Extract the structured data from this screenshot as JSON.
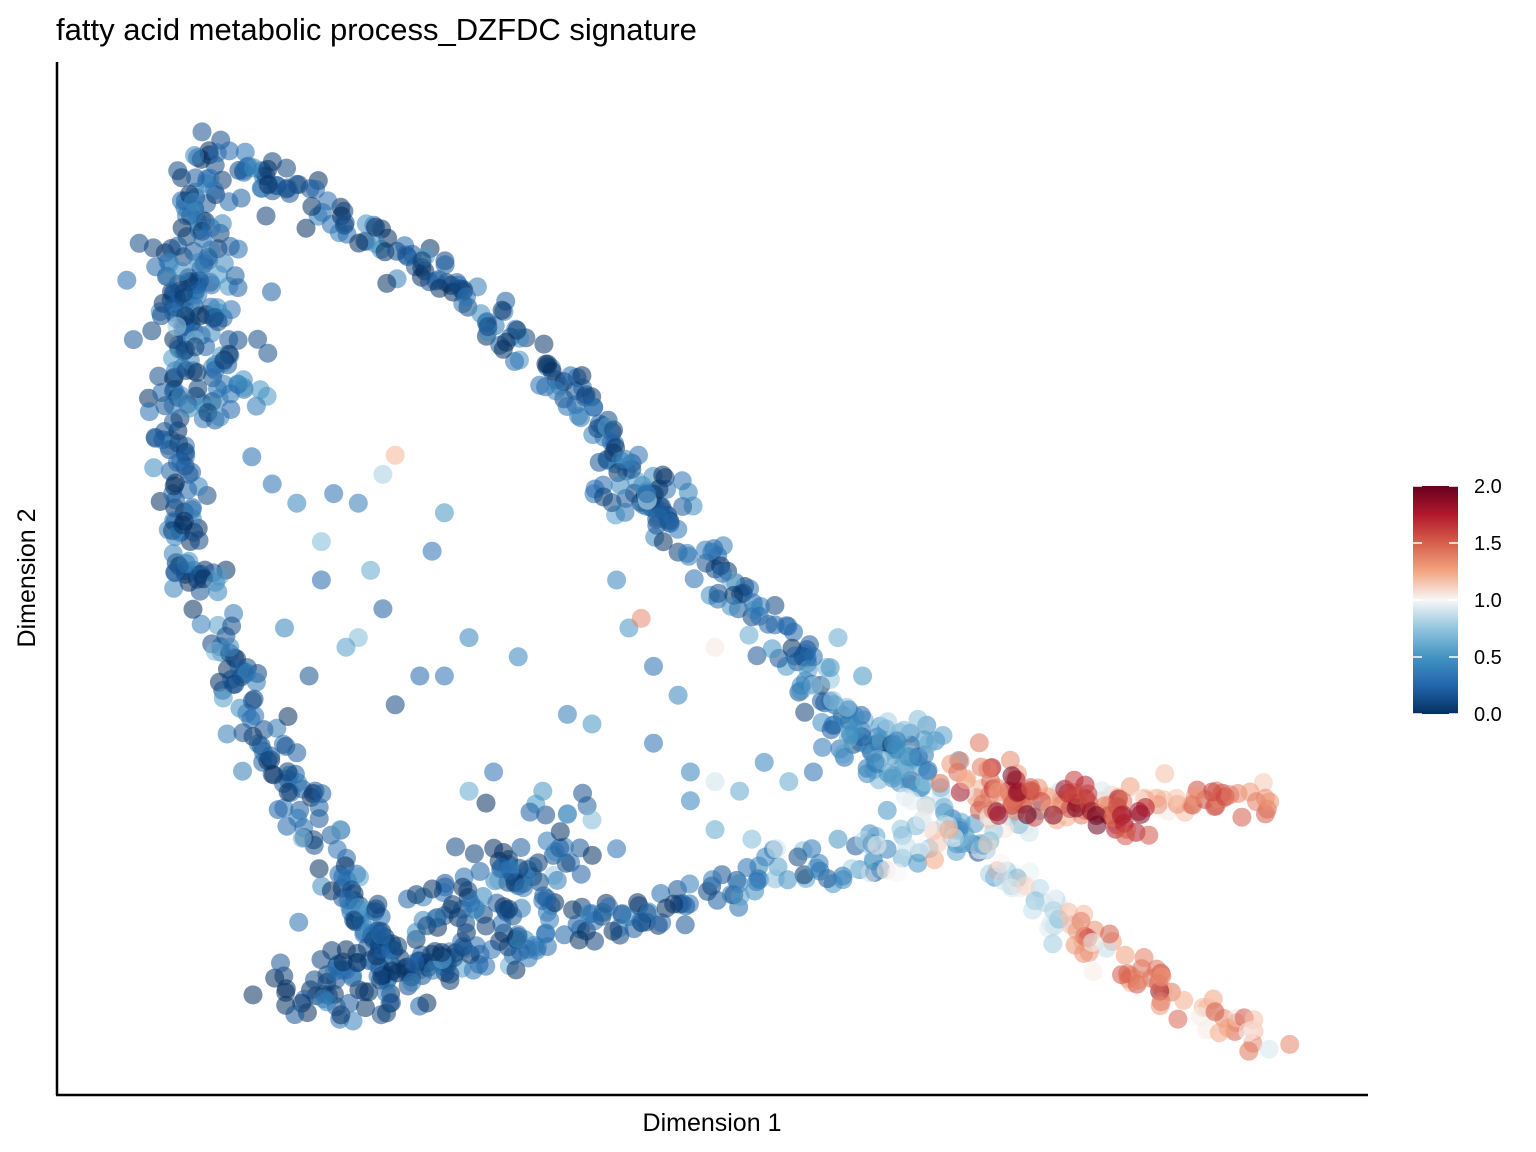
{
  "chart_data": {
    "type": "scatter",
    "title": "fatty acid metabolic process_DZFDC signature",
    "xlabel": "Dimension 1",
    "ylabel": "Dimension 2",
    "xlim": [
      0,
      100
    ],
    "ylim": [
      0,
      100
    ],
    "x_ticks": "none",
    "y_ticks": "none",
    "grid": false,
    "legend": {
      "position": "right",
      "type": "colorbar",
      "range": [
        0.0,
        2.0
      ],
      "ticks": [
        "0.0",
        "0.5",
        "1.0",
        "1.5",
        "2.0"
      ],
      "colors": [
        "#053061",
        "#2166ac",
        "#4393c3",
        "#92c5de",
        "#f7f7f7",
        "#f4a582",
        "#d6604d",
        "#b2182b",
        "#67001f"
      ]
    },
    "colors": {
      "axis": "#000000",
      "text": "#000000"
    },
    "point_opacity": 0.55,
    "curves": [
      {
        "name_key": "left-arm",
        "pts": [
          [
            9.5,
            96
          ],
          [
            8.7,
            93
          ],
          [
            7,
            84
          ],
          [
            6.2,
            74
          ],
          [
            6,
            64
          ],
          [
            7.5,
            52
          ],
          [
            9.7,
            44
          ],
          [
            12,
            37
          ],
          [
            14,
            31
          ],
          [
            17,
            25
          ],
          [
            20,
            18
          ],
          [
            22,
            13
          ],
          [
            25,
            9
          ]
        ],
        "spread": 1.0,
        "density": 1.0,
        "val": [
          0.15,
          0.18
        ]
      },
      {
        "name_key": "top-arm",
        "pts": [
          [
            10,
            94
          ],
          [
            14,
            92
          ],
          [
            19,
            88
          ],
          [
            23,
            85
          ],
          [
            28,
            81
          ],
          [
            33,
            76
          ],
          [
            38,
            70
          ],
          [
            42,
            64
          ],
          [
            45,
            58
          ],
          [
            49,
            53
          ],
          [
            53,
            47
          ],
          [
            57,
            41
          ],
          [
            61,
            35
          ],
          [
            64,
            31
          ],
          [
            68,
            26
          ],
          [
            72,
            21
          ],
          [
            76,
            17
          ],
          [
            80,
            13
          ],
          [
            84,
            9
          ],
          [
            88,
            6
          ],
          [
            92,
            4
          ],
          [
            95,
            2
          ]
        ],
        "spread": 0.9,
        "density": 1.0,
        "valseg": [
          [
            0,
            0.14
          ],
          [
            8,
            0.2
          ],
          [
            11,
            0.3
          ],
          [
            13,
            0.6
          ],
          [
            15,
            0.9
          ],
          [
            17,
            1.35
          ],
          [
            19,
            1.2
          ],
          [
            21,
            0.7
          ]
        ]
      },
      {
        "name_key": "bottom-arm",
        "pts": [
          [
            16,
            6
          ],
          [
            22,
            8
          ],
          [
            28,
            10
          ],
          [
            34,
            12
          ],
          [
            40,
            14
          ],
          [
            46,
            16
          ],
          [
            52,
            18
          ],
          [
            58,
            20
          ],
          [
            64,
            22
          ],
          [
            70,
            24
          ],
          [
            76,
            26
          ],
          [
            82,
            27
          ],
          [
            88,
            27
          ],
          [
            94,
            27
          ],
          [
            95,
            26
          ]
        ],
        "spread": 1.3,
        "density": 1.0,
        "valseg": [
          [
            0,
            0.1
          ],
          [
            4,
            0.15
          ],
          [
            6,
            0.4
          ],
          [
            8,
            0.9
          ],
          [
            10,
            1.2
          ],
          [
            12,
            1.35
          ],
          [
            14,
            0.9
          ]
        ]
      },
      {
        "name_key": "left-cluster",
        "pts": [
          [
            8,
            88
          ],
          [
            8.5,
            82
          ],
          [
            9,
            76
          ],
          [
            10,
            70
          ],
          [
            11,
            66
          ]
        ],
        "spread": 2.2,
        "density": 1.4,
        "val": [
          0.2,
          0.25
        ]
      },
      {
        "name_key": "mid-cluster",
        "pts": [
          [
            41,
            60
          ],
          [
            43,
            60
          ],
          [
            46,
            58
          ]
        ],
        "spread": 2.0,
        "density": 1.5,
        "val": [
          0.3,
          0.3
        ]
      },
      {
        "name_key": "bottom-cluster",
        "pts": [
          [
            18,
            8
          ],
          [
            22,
            10
          ],
          [
            26,
            12
          ],
          [
            30,
            14
          ],
          [
            32,
            18
          ],
          [
            35,
            20
          ],
          [
            37,
            24
          ]
        ],
        "spread": 2.6,
        "density": 2.0,
        "val": [
          0.12,
          0.2
        ]
      },
      {
        "name_key": "right-cluster",
        "pts": [
          [
            60,
            35
          ],
          [
            63,
            34
          ],
          [
            66,
            33
          ],
          [
            69,
            31
          ],
          [
            72,
            28
          ],
          [
            75,
            27
          ]
        ],
        "spread": 1.7,
        "density": 1.5,
        "valseg": [
          [
            0,
            0.35
          ],
          [
            2,
            0.5
          ],
          [
            3,
            1.4
          ],
          [
            5,
            1.6
          ]
        ]
      },
      {
        "name_key": "red-core",
        "pts": [
          [
            73,
            28
          ],
          [
            76,
            27
          ],
          [
            79,
            27
          ],
          [
            82,
            26
          ],
          [
            85,
            26
          ]
        ],
        "spread": 1.3,
        "density": 1.6,
        "val": [
          1.55,
          1.7
        ]
      }
    ],
    "scatter_extra": [
      [
        14,
        60,
        0.3
      ],
      [
        16,
        58,
        0.4
      ],
      [
        19,
        59,
        0.3
      ],
      [
        21,
        58,
        0.35
      ],
      [
        23,
        61,
        0.8
      ],
      [
        28,
        57,
        0.5
      ],
      [
        27,
        53,
        0.3
      ],
      [
        34,
        42,
        0.4
      ],
      [
        26,
        40,
        0.25
      ],
      [
        30,
        44,
        0.4
      ],
      [
        21,
        44,
        0.7
      ],
      [
        23,
        47,
        0.2
      ],
      [
        20,
        43,
        0.55
      ],
      [
        17,
        40,
        0.15
      ],
      [
        16,
        32,
        0.2
      ],
      [
        24,
        37,
        0.1
      ],
      [
        28,
        40,
        0.3
      ],
      [
        38,
        36,
        0.35
      ],
      [
        40,
        35,
        0.5
      ],
      [
        45,
        33,
        0.3
      ],
      [
        48,
        30,
        0.4
      ],
      [
        50,
        29,
        0.9
      ],
      [
        43,
        45,
        0.5
      ],
      [
        45,
        41,
        0.3
      ],
      [
        42,
        50,
        0.4
      ],
      [
        50,
        43,
        1.05
      ],
      [
        52,
        28,
        0.6
      ],
      [
        54,
        31,
        0.4
      ],
      [
        56,
        29,
        0.6
      ],
      [
        58,
        30,
        0.3
      ],
      [
        61,
        34,
        0.5
      ],
      [
        63,
        31,
        0.4
      ],
      [
        48,
        27,
        0.4
      ],
      [
        50,
        24,
        0.6
      ],
      [
        53,
        23,
        0.7
      ],
      [
        55,
        22,
        0.9
      ],
      [
        60,
        23,
        0.5
      ],
      [
        64,
        26,
        0.5
      ],
      [
        66,
        27,
        0.95
      ],
      [
        69,
        24,
        1.25
      ],
      [
        44,
        46,
        1.35
      ],
      [
        24,
        63,
        1.2
      ],
      [
        36,
        28,
        0.5
      ],
      [
        40,
        25,
        0.7
      ],
      [
        42,
        22,
        0.3
      ],
      [
        32,
        30,
        0.3
      ],
      [
        30,
        28,
        0.6
      ],
      [
        47,
        38,
        0.4
      ],
      [
        18,
        54,
        0.7
      ],
      [
        22,
        51,
        0.6
      ],
      [
        15,
        45,
        0.4
      ],
      [
        18,
        50,
        0.25
      ],
      [
        60,
        44,
        0.6
      ],
      [
        58,
        42,
        0.3
      ],
      [
        62,
        40,
        0.5
      ],
      [
        57,
        39,
        0.4
      ]
    ]
  }
}
